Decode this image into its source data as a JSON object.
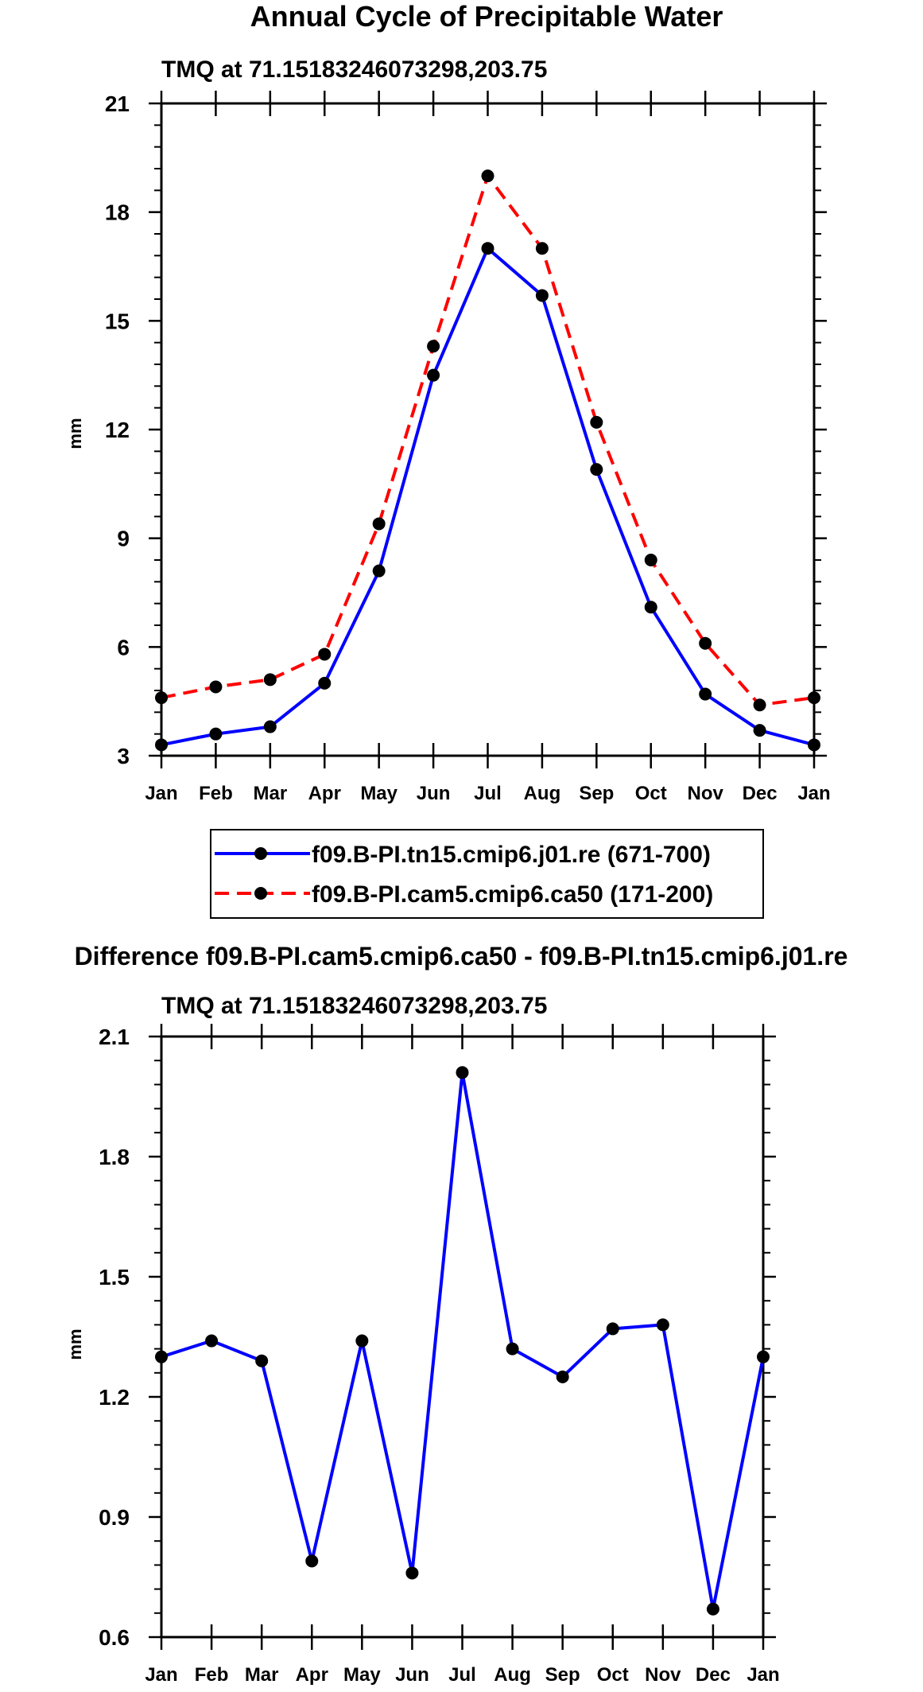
{
  "chart_data": [
    {
      "type": "line",
      "title": "Annual Cycle of Precipitable Water",
      "subtitle": "TMQ at 71.15183246073298,203.75",
      "xlabel": "",
      "ylabel": "mm",
      "categories": [
        "Jan",
        "Feb",
        "Mar",
        "Apr",
        "May",
        "Jun",
        "Jul",
        "Aug",
        "Sep",
        "Oct",
        "Nov",
        "Dec",
        "Jan"
      ],
      "ylim": [
        3,
        21
      ],
      "yticks": [
        "3",
        "6",
        "9",
        "12",
        "15",
        "18",
        "21"
      ],
      "grid": false,
      "legend_position": "below",
      "series": [
        {
          "name": "f09.B-PI.tn15.cmip6.j01.re (671-700)",
          "color": "#0000ff",
          "dash": "solid",
          "values": [
            3.3,
            3.6,
            3.8,
            5.0,
            8.1,
            13.5,
            17.0,
            15.7,
            10.9,
            7.1,
            4.7,
            3.7,
            3.3
          ]
        },
        {
          "name": "f09.B-PI.cam5.cmip6.ca50 (171-200)",
          "color": "#ff0000",
          "dash": "dashed",
          "values": [
            4.6,
            4.9,
            5.1,
            5.8,
            9.4,
            14.3,
            19.0,
            17.0,
            12.2,
            8.4,
            6.1,
            4.4,
            4.6
          ]
        }
      ]
    },
    {
      "type": "line",
      "title": "Difference f09.B-PI.cam5.cmip6.ca50 - f09.B-PI.tn15.cmip6.j01.re",
      "subtitle": "TMQ at 71.15183246073298,203.75",
      "xlabel": "",
      "ylabel": "mm",
      "categories": [
        "Jan",
        "Feb",
        "Mar",
        "Apr",
        "May",
        "Jun",
        "Jul",
        "Aug",
        "Sep",
        "Oct",
        "Nov",
        "Dec",
        "Jan"
      ],
      "ylim": [
        0.6,
        2.1
      ],
      "yticks": [
        "0.6",
        "0.9",
        "1.2",
        "1.5",
        "1.8",
        "2.1"
      ],
      "grid": false,
      "series": [
        {
          "name": "difference",
          "color": "#0000ff",
          "dash": "solid",
          "values": [
            1.3,
            1.34,
            1.29,
            0.79,
            1.34,
            0.76,
            2.01,
            1.32,
            1.25,
            1.37,
            1.38,
            0.67,
            1.3
          ]
        }
      ]
    }
  ]
}
